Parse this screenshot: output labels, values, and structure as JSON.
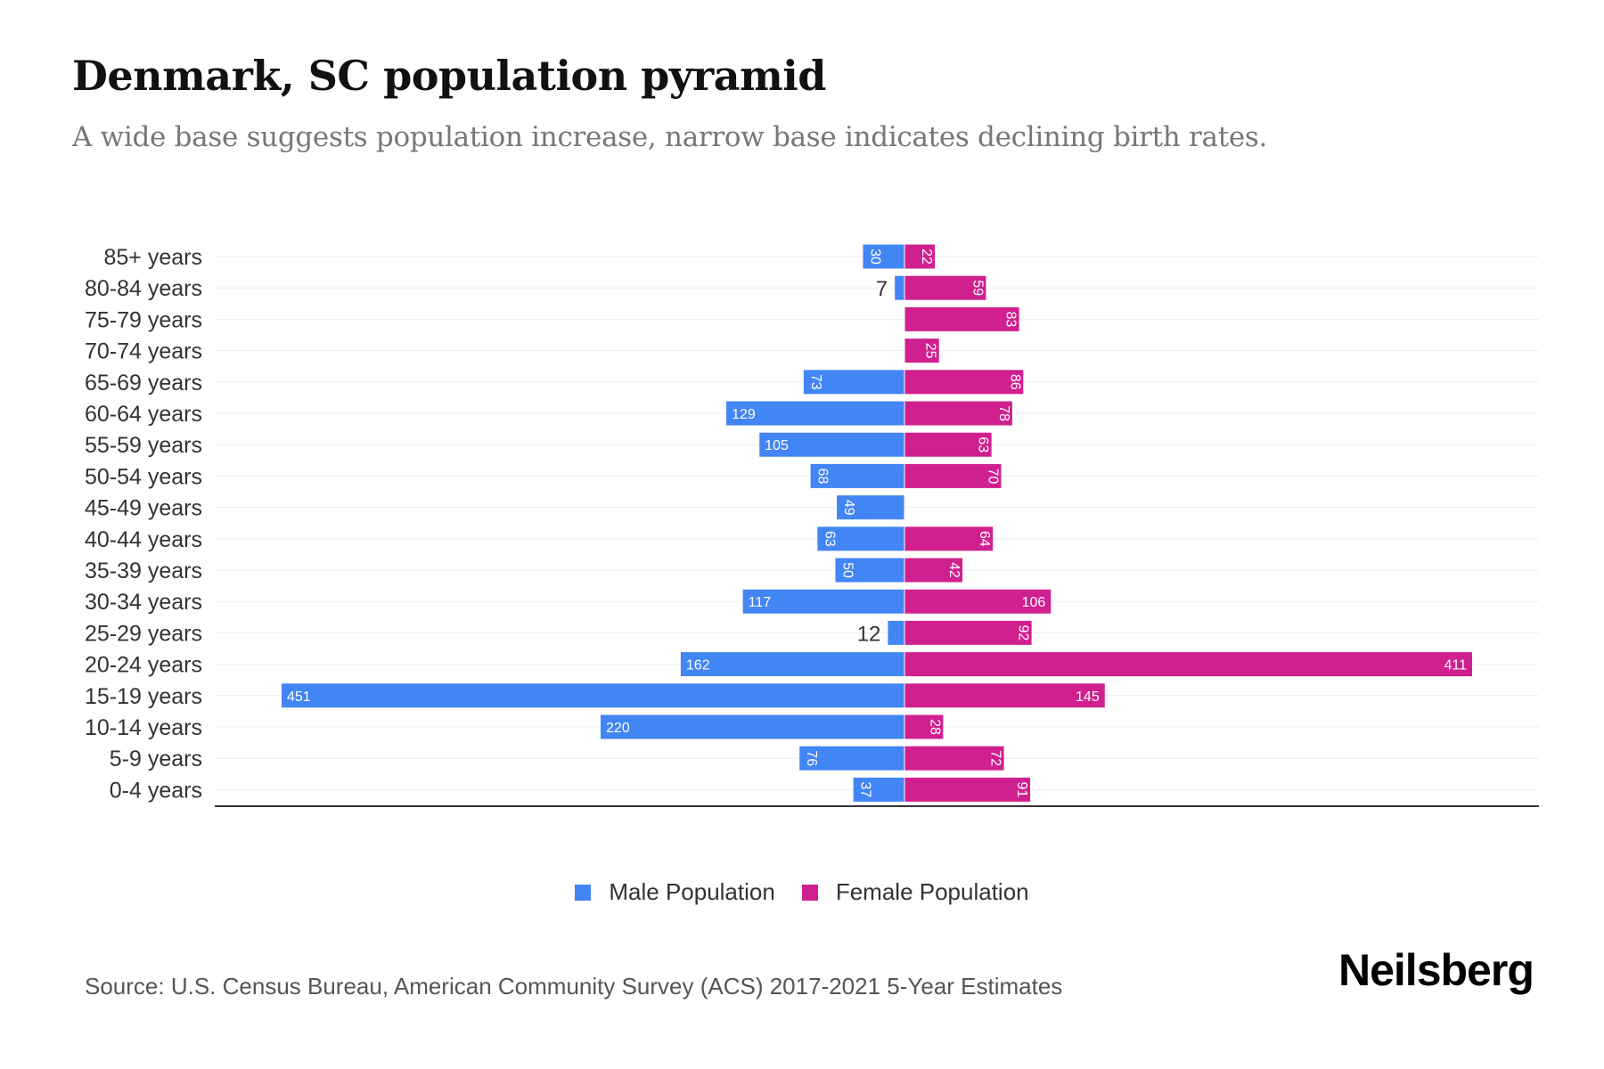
{
  "title": "Denmark, SC population pyramid",
  "subtitle": "A wide base suggests population increase, narrow base indicates declining birth rates.",
  "source": "Source: U.S. Census Bureau, American Community Survey (ACS) 2017-2021 5-Year Estimates",
  "logo": "Neilsberg",
  "chart_data": {
    "type": "bar",
    "orientation": "horizontal-pyramid",
    "categories": [
      "85+ years",
      "80-84 years",
      "75-79 years",
      "70-74 years",
      "65-69 years",
      "60-64 years",
      "55-59 years",
      "50-54 years",
      "45-49 years",
      "40-44 years",
      "35-39 years",
      "30-34 years",
      "25-29 years",
      "20-24 years",
      "15-19 years",
      "10-14 years",
      "5-9 years",
      "0-4 years"
    ],
    "series": [
      {
        "name": "Male Population",
        "color": "#4285f4",
        "values": [
          30,
          7,
          0,
          0,
          73,
          129,
          105,
          68,
          49,
          63,
          50,
          117,
          12,
          162,
          451,
          220,
          76,
          37
        ]
      },
      {
        "name": "Female Population",
        "color": "#d0208f",
        "values": [
          22,
          59,
          83,
          25,
          86,
          78,
          63,
          70,
          0,
          64,
          42,
          106,
          92,
          411,
          145,
          28,
          72,
          91
        ]
      }
    ],
    "xlim": [
      -451,
      451
    ],
    "grid": true,
    "legend": "bottom-center"
  }
}
